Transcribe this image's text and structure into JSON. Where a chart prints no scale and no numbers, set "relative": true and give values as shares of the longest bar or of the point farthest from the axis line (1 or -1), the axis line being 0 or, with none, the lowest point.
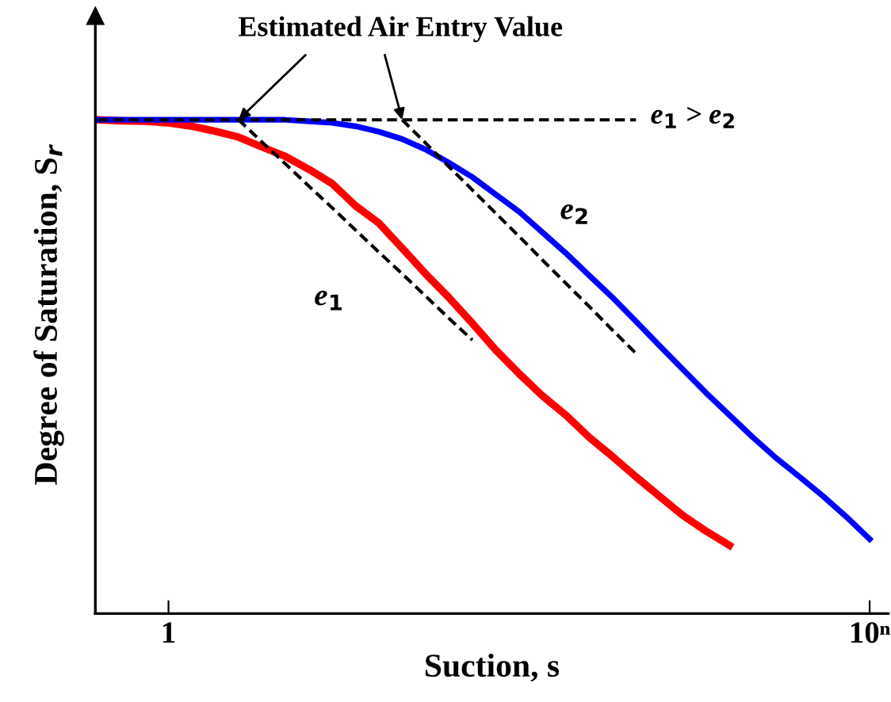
{
  "chart_data": {
    "type": "line",
    "relative": true,
    "xlabel": "Suction, s",
    "ylabel": "Degree of Saturation, S$_{r}$",
    "tick_labels": "x",
    "grid": false,
    "legend": false,
    "categories": [
      null,
      null,
      null,
      "1",
      null,
      null,
      null,
      null,
      null,
      null,
      null,
      null,
      null,
      null,
      null,
      null,
      null,
      null,
      null,
      null,
      null,
      null,
      null,
      null,
      null,
      null,
      null,
      null,
      null,
      null,
      null,
      null,
      null,
      "10ⁿ"
    ],
    "series": [
      {
        "name": "e$_{1}$",
        "color": "#ff0000",
        "values": [
          1.0,
          0.998,
          0.997,
          0.994,
          0.987,
          0.977,
          0.965,
          0.945,
          0.926,
          0.9,
          0.871,
          0.826,
          0.791,
          0.74,
          0.688,
          0.64,
          0.588,
          0.534,
          0.486,
          0.441,
          0.402,
          0.357,
          0.318,
          0.277,
          0.238,
          0.199,
          0.167,
          0.138,
          null,
          null,
          null,
          null,
          null,
          null
        ]
      },
      {
        "name": "e$_{2}$",
        "color": "#0000ff",
        "values": [
          1.0,
          1.0,
          1.0,
          1.0,
          1.0,
          1.0,
          1.0,
          1.0,
          1.0,
          0.997,
          0.994,
          0.987,
          0.976,
          0.961,
          0.94,
          0.913,
          0.884,
          0.849,
          0.814,
          0.772,
          0.73,
          0.685,
          0.64,
          0.592,
          0.543,
          0.495,
          0.447,
          0.402,
          0.357,
          0.315,
          0.277,
          0.238,
          0.196,
          0.151
        ]
      },
      {
        "color": "#000000",
        "line_style": "dashed",
        "values": [
          1.0,
          1.0,
          1.0,
          1.0,
          1.0,
          1.0,
          1.0,
          1.0,
          1.0,
          1.0,
          1.0,
          1.0,
          1.0,
          1.0,
          1.0,
          1.0,
          1.0,
          1.0,
          1.0,
          1.0,
          1.0,
          1.0,
          1.0,
          1.0,
          null,
          null,
          null,
          null,
          null,
          null,
          null,
          null,
          null,
          null
        ]
      },
      {
        "color": "#000000",
        "line_style": "dashed",
        "values": [
          null,
          null,
          null,
          null,
          null,
          null,
          1.0,
          0.955,
          0.911,
          0.866,
          0.822,
          0.777,
          0.732,
          0.688,
          0.643,
          0.598,
          0.554,
          null,
          null,
          null,
          null,
          null,
          null,
          null,
          null,
          null,
          null,
          null,
          null,
          null,
          null,
          null,
          null,
          null
        ]
      },
      {
        "color": "#000000",
        "line_style": "dashed",
        "values": [
          null,
          null,
          null,
          null,
          null,
          null,
          null,
          null,
          null,
          null,
          null,
          null,
          null,
          1.0,
          0.953,
          0.905,
          0.858,
          0.811,
          0.764,
          0.716,
          0.669,
          0.622,
          0.574,
          0.527,
          null,
          null,
          null,
          null,
          null,
          null,
          null,
          null,
          null,
          null
        ]
      }
    ],
    "annotations": [
      "Estimated Air Entry Value",
      "e$_{1}$ > e$_{2}$"
    ]
  }
}
